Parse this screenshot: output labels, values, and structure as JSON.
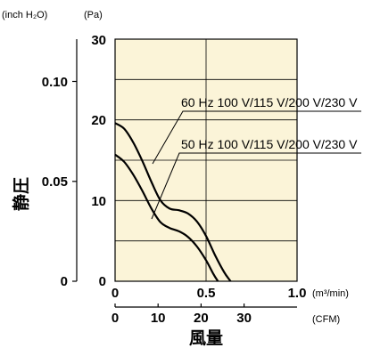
{
  "chart_data": {
    "type": "line",
    "title": "",
    "xlabel": "風量",
    "ylabel": "静圧",
    "x_unit_primary": "(m³/min)",
    "x_unit_secondary": "(CFM)",
    "y_unit_left": "(inch H₂O)",
    "y_unit_right": "(Pa)",
    "xlim": [
      0,
      1.0
    ],
    "ylim": [
      0,
      30
    ],
    "grid": true,
    "background_color": "#fbf4d8",
    "x_ticks": [
      "0",
      "0.5",
      "1.0"
    ],
    "x_ticks_cfm": [
      "0",
      "10",
      "20",
      "30"
    ],
    "y_ticks_pa": [
      "0",
      "10",
      "20",
      "30"
    ],
    "y_ticks_inch": [
      "0",
      "0.05",
      "0.10"
    ],
    "series": [
      {
        "name": "60 Hz 100 V/115 V/200 V/230 V",
        "x": [
          0,
          0.05,
          0.1,
          0.15,
          0.2,
          0.25,
          0.3,
          0.35,
          0.4,
          0.45,
          0.5,
          0.55,
          0.6,
          0.635
        ],
        "y": [
          19.6,
          18.9,
          17.2,
          14.9,
          12.3,
          10.0,
          9.0,
          8.8,
          8.4,
          7.4,
          5.6,
          3.2,
          1.1,
          0
        ]
      },
      {
        "name": "50 Hz 100 V/115 V/200 V/230 V",
        "x": [
          0,
          0.05,
          0.1,
          0.15,
          0.2,
          0.25,
          0.3,
          0.35,
          0.4,
          0.45,
          0.5,
          0.54,
          0.565
        ],
        "y": [
          15.7,
          14.8,
          13.2,
          11.2,
          9.0,
          7.3,
          6.6,
          6.2,
          5.5,
          4.3,
          2.6,
          0.9,
          0
        ]
      }
    ]
  }
}
